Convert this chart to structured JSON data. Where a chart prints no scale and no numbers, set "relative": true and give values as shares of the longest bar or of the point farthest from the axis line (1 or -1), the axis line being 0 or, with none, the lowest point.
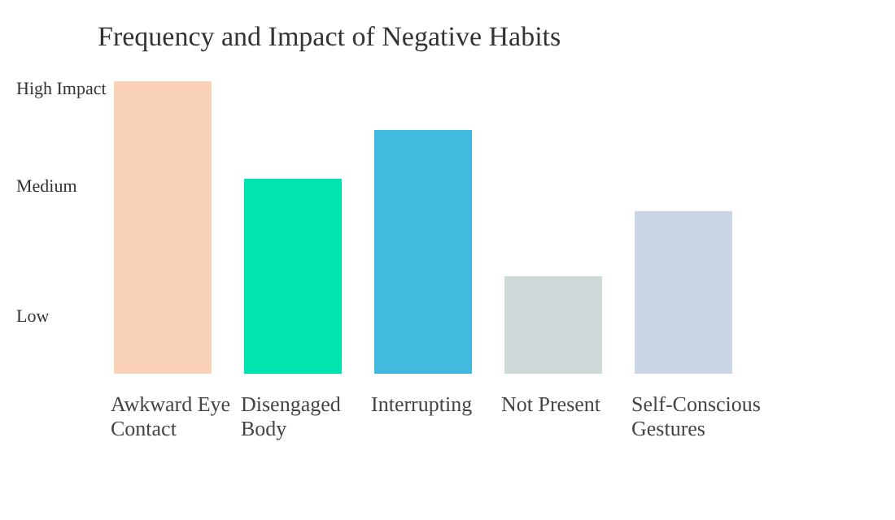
{
  "chart_data": {
    "type": "bar",
    "title": "Frequency and Impact of Negative Habits",
    "categories": [
      "Awkward Eye Contact",
      "Disengaged Body",
      "Interrupting",
      "Not Present",
      "Self-Conscious Gestures"
    ],
    "values": [
      1,
      0.667,
      0.833,
      0.333,
      0.556
    ],
    "relative": true,
    "annotations": [
      "High Impact",
      "Medium",
      "Low"
    ],
    "colors": [
      "#f9d0b8",
      "#00e5b0",
      "#42b9df",
      "#d0d8da",
      "#cbd6e5"
    ],
    "grid": false,
    "legend": false
  }
}
